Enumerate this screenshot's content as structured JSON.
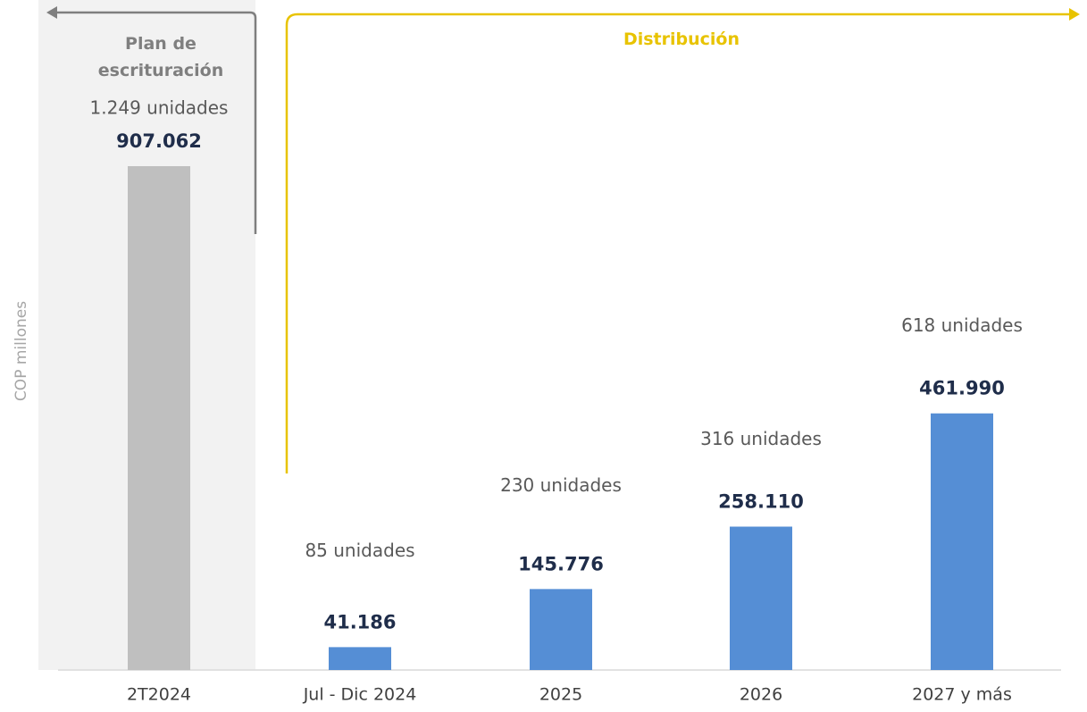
{
  "chart_data": {
    "type": "bar",
    "y_label": "COP millones",
    "categories": [
      "2T2024",
      "Jul - Dic 2024",
      "2025",
      "2026",
      "2027 y más"
    ],
    "values": [
      907062,
      41186,
      145776,
      258110,
      461990
    ],
    "value_labels": [
      "907.062",
      "41.186",
      "145.776",
      "258.110",
      "461.990"
    ],
    "unit_labels": [
      "1.249 unidades",
      "85 unidades",
      "230 unidades",
      "316 unidades",
      "618 unidades"
    ],
    "colors": [
      "#bfbfbf",
      "#558ed5",
      "#558ed5",
      "#558ed5",
      "#558ed5"
    ],
    "groups": [
      {
        "label": "Plan de escrituración",
        "color": "#7f7f7f"
      },
      {
        "label": "Distribución",
        "color": "#e8c300"
      }
    ]
  }
}
